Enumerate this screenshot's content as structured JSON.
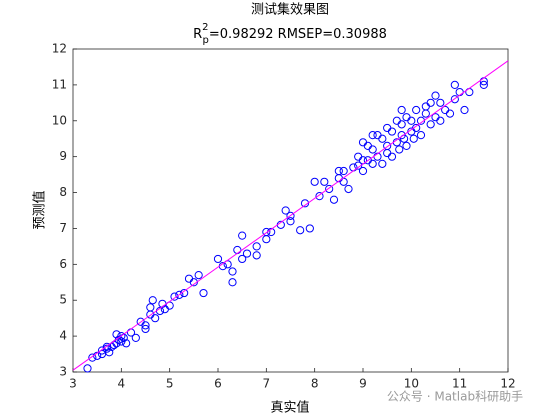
{
  "chart_data": {
    "type": "scatter",
    "title": "测试集效果图",
    "subtitle": {
      "base": "R",
      "sup": "2",
      "sub": "p",
      "rest": "=0.98292  RMSEP=0.30988"
    },
    "xlabel": "真实值",
    "ylabel": "预测值",
    "watermark": "公众号 · Matlab科研助手",
    "xlim": [
      3,
      12
    ],
    "ylim": [
      3,
      12
    ],
    "xticks": [
      3,
      4,
      5,
      6,
      7,
      8,
      9,
      10,
      11,
      12
    ],
    "yticks": [
      3,
      4,
      5,
      6,
      7,
      8,
      9,
      10,
      11,
      12
    ],
    "color": "#0000ff",
    "fit_line": {
      "x": [
        3,
        12
      ],
      "y": [
        3.05,
        11.67
      ],
      "color": "#ff00ff"
    },
    "x": [
      3.4,
      3.5,
      3.6,
      3.6,
      3.7,
      3.75,
      3.8,
      3.85,
      3.9,
      3.95,
      4.0,
      4.0,
      4.05,
      4.1,
      3.7,
      3.9,
      4.2,
      3.3,
      4.4,
      4.5,
      4.6,
      4.6,
      4.65,
      4.7,
      4.8,
      4.85,
      4.9,
      5.0,
      5.1,
      5.2,
      5.3,
      5.5,
      5.6,
      5.7,
      4.3,
      4.5,
      5.4,
      6.0,
      6.1,
      6.2,
      6.3,
      6.3,
      6.4,
      6.5,
      6.5,
      6.6,
      6.8,
      6.8,
      7.0,
      7.0,
      7.1,
      7.3,
      7.4,
      7.5,
      7.5,
      7.7,
      7.8,
      7.9,
      8.0,
      8.1,
      8.2,
      8.3,
      8.4,
      8.5,
      8.5,
      8.6,
      8.7,
      8.8,
      8.9,
      8.9,
      9.0,
      9.0,
      9.1,
      9.1,
      9.2,
      9.2,
      9.3,
      9.3,
      9.4,
      9.4,
      9.5,
      9.5,
      9.6,
      9.6,
      9.7,
      9.7,
      9.75,
      9.8,
      9.8,
      9.85,
      9.9,
      9.9,
      10.0,
      10.0,
      10.05,
      10.1,
      10.1,
      10.2,
      10.2,
      10.3,
      10.3,
      10.4,
      10.4,
      10.5,
      10.6,
      10.6,
      10.7,
      10.8,
      10.9,
      11.0,
      11.1,
      11.2,
      11.5,
      11.5,
      10.9,
      9.5,
      9.0,
      8.6,
      9.8,
      10.5,
      9.2
    ],
    "y": [
      3.4,
      3.45,
      3.6,
      3.5,
      3.65,
      3.55,
      3.7,
      3.75,
      3.8,
      3.9,
      3.85,
      4.0,
      3.95,
      3.8,
      3.7,
      4.05,
      4.1,
      3.1,
      4.4,
      4.3,
      4.6,
      4.8,
      5.0,
      4.5,
      4.7,
      4.9,
      4.75,
      4.85,
      5.1,
      5.15,
      5.2,
      5.5,
      5.7,
      5.2,
      3.95,
      4.2,
      5.6,
      6.15,
      5.95,
      6.0,
      5.5,
      5.8,
      6.4,
      6.8,
      6.15,
      6.3,
      6.25,
      6.5,
      6.9,
      6.7,
      6.9,
      7.1,
      7.5,
      7.2,
      7.35,
      6.95,
      7.7,
      7.0,
      8.3,
      7.9,
      8.3,
      8.1,
      7.8,
      8.4,
      8.6,
      8.3,
      8.1,
      8.7,
      8.75,
      9.0,
      8.9,
      8.6,
      9.3,
      8.9,
      9.2,
      8.8,
      9.6,
      9.0,
      9.5,
      8.8,
      9.8,
      9.3,
      9.7,
      9.0,
      10.0,
      9.4,
      9.2,
      9.9,
      9.6,
      9.5,
      10.1,
      9.3,
      10.0,
      9.7,
      9.5,
      10.3,
      9.8,
      10.0,
      9.6,
      10.2,
      10.4,
      9.9,
      10.5,
      10.1,
      10.5,
      10.0,
      10.3,
      10.2,
      10.6,
      10.8,
      10.3,
      10.8,
      11.0,
      11.1,
      11.0,
      9.1,
      9.4,
      8.6,
      10.3,
      10.7,
      9.6
    ]
  }
}
